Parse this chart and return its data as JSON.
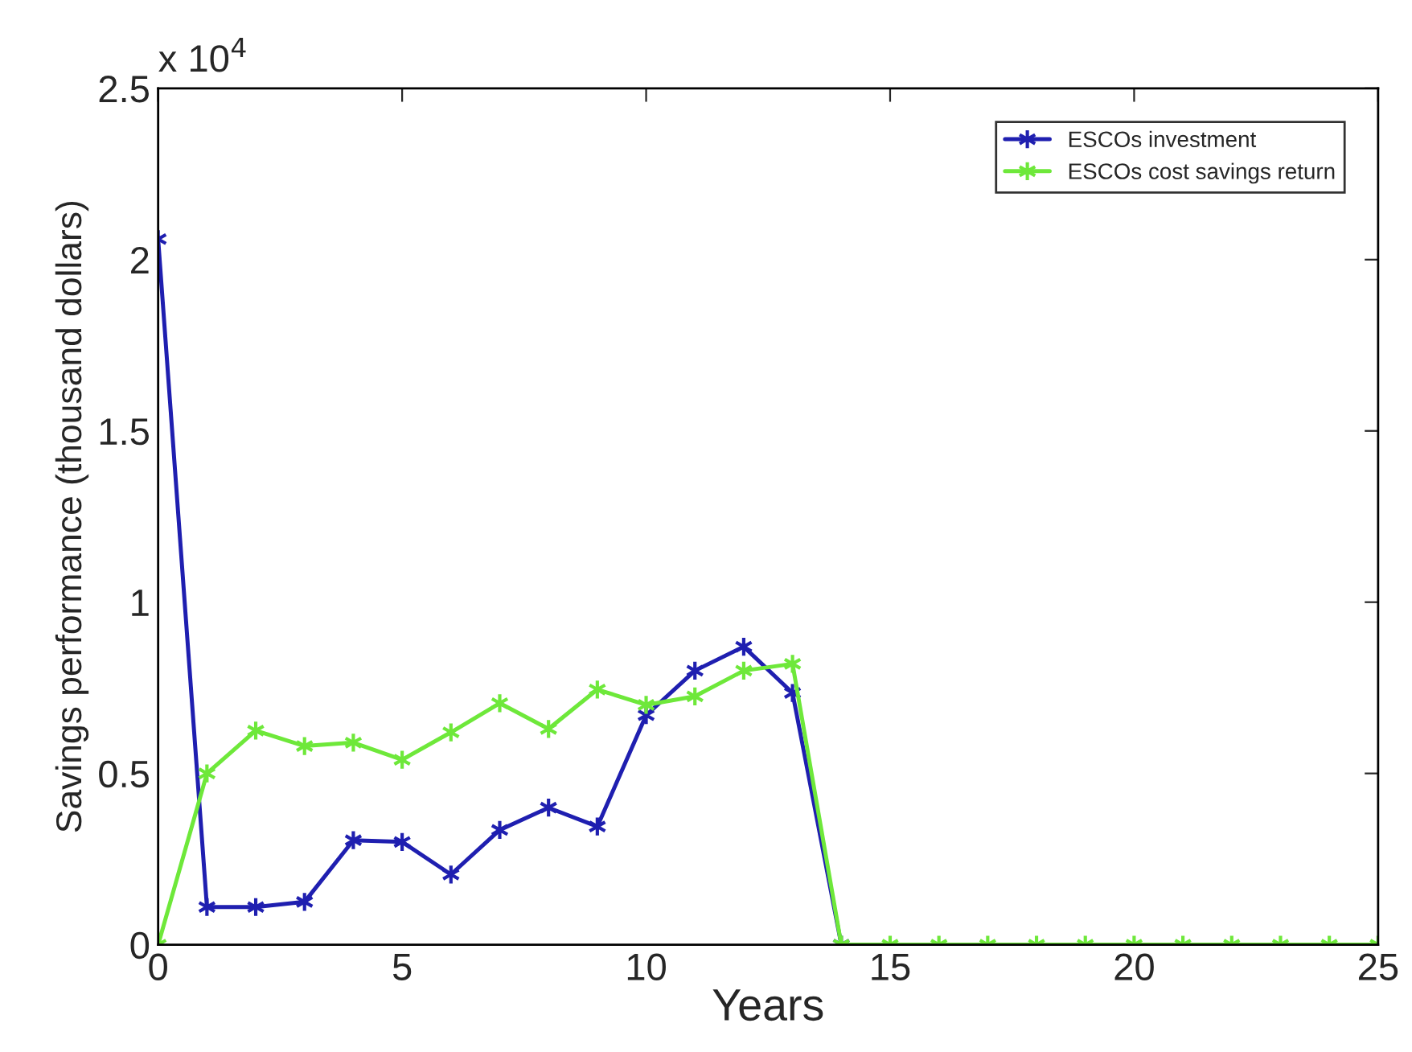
{
  "chart_data": {
    "type": "line",
    "xlabel": "Years",
    "ylabel": "Savings performance (thousand dollars)",
    "annotations": [
      "x 10$^{4}$"
    ],
    "series": [
      {
        "name": "ESCOs investment",
        "color": "#1f1fb0",
        "x": [
          0,
          1,
          2,
          3,
          4,
          5,
          6,
          7,
          8,
          9,
          10,
          11,
          12,
          13,
          14
        ],
        "values": [
          2.06,
          0.11,
          0.11,
          0.125,
          0.305,
          0.3,
          0.205,
          0.335,
          0.4,
          0.345,
          0.67,
          0.8,
          0.87,
          0.735,
          0
        ]
      },
      {
        "name": "ESCOs cost savings return",
        "color": "#6ee83a",
        "x": [
          0,
          1,
          2,
          3,
          4,
          5,
          6,
          7,
          8,
          9,
          10,
          11,
          12,
          13,
          14,
          15,
          16,
          17,
          18,
          19,
          20,
          21,
          22,
          23,
          24,
          25
        ],
        "values": [
          0,
          0.5,
          0.625,
          0.58,
          0.59,
          0.54,
          0.62,
          0.705,
          0.63,
          0.745,
          0.7,
          0.725,
          0.8,
          0.82,
          0,
          0,
          0,
          0,
          0,
          0,
          0,
          0,
          0,
          0,
          0,
          0
        ]
      }
    ],
    "xlim": [
      0,
      25
    ],
    "xticks": [
      0,
      5,
      10,
      15,
      20,
      25
    ],
    "ylim": [
      0,
      2.5
    ],
    "yticks": [
      0,
      0.5,
      1,
      1.5,
      2,
      2.5
    ],
    "grid": false,
    "legend": "top right",
    "marker": "cross",
    "line_style": "solid"
  }
}
